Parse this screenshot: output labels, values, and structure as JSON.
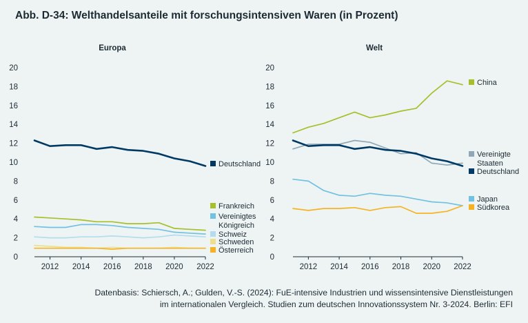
{
  "figure": {
    "title": "Abb. D-34: Welthandelsanteile mit forschungsintensiven Waren (in Prozent)",
    "source_lines": [
      "Datenbasis: Schiersch, A.; Gulden, V.-S. (2024): FuE-intensive Industrien und wissensintensive Dienstleistungen",
      "im internationalen Vergleich. Studien zum deutschen Innovationssystem Nr. 3-2024. Berlin: EFI"
    ]
  },
  "chart_data": [
    {
      "type": "line",
      "title": "Europa",
      "xlabel": "",
      "ylabel": "",
      "xlim": [
        2011,
        2022
      ],
      "ylim": [
        0,
        20
      ],
      "xticks": [
        2012,
        2014,
        2016,
        2018,
        2020,
        2022
      ],
      "yticks": [
        0,
        2,
        4,
        6,
        8,
        10,
        12,
        14,
        16,
        18,
        20
      ],
      "grid": false,
      "legend": "right",
      "x": [
        2011,
        2012,
        2013,
        2014,
        2015,
        2016,
        2017,
        2018,
        2019,
        2020,
        2021,
        2022
      ],
      "series": [
        {
          "name": "Deutschland",
          "color": "#003a64",
          "legend_swatch": true,
          "label_lines": [
            "Deutschland"
          ],
          "values": [
            12.3,
            11.7,
            11.8,
            11.8,
            11.4,
            11.6,
            11.3,
            11.2,
            10.9,
            10.4,
            10.1,
            9.6
          ]
        },
        {
          "name": "Frankreich",
          "color": "#a6bf2a",
          "legend_swatch": true,
          "label_lines": [
            "Frankreich"
          ],
          "values": [
            4.2,
            4.1,
            4.0,
            3.9,
            3.7,
            3.7,
            3.5,
            3.5,
            3.6,
            3.0,
            2.9,
            2.8
          ]
        },
        {
          "name": "Vereinigtes Königreich",
          "color": "#72c1e1",
          "legend_swatch": true,
          "label_lines": [
            "Vereinigtes",
            "Königreich"
          ],
          "values": [
            3.2,
            3.1,
            3.1,
            3.4,
            3.4,
            3.3,
            3.1,
            3.0,
            2.9,
            2.6,
            2.5,
            2.4
          ]
        },
        {
          "name": "Schweiz",
          "color": "#b4dcee",
          "legend_swatch": true,
          "label_lines": [
            "Schweiz"
          ],
          "values": [
            2.1,
            2.0,
            2.0,
            2.1,
            2.1,
            2.2,
            2.1,
            2.0,
            2.1,
            2.3,
            2.2,
            2.1
          ]
        },
        {
          "name": "Schweden",
          "color": "#ecdf90",
          "legend_swatch": true,
          "label_lines": [
            "Schweden"
          ],
          "values": [
            1.2,
            1.1,
            1.0,
            1.0,
            0.9,
            1.0,
            0.9,
            0.9,
            0.9,
            1.0,
            0.9,
            0.9
          ]
        },
        {
          "name": "Österreich",
          "color": "#f5b324",
          "legend_swatch": true,
          "label_lines": [
            "Österreich"
          ],
          "values": [
            0.9,
            0.9,
            0.9,
            0.9,
            0.9,
            0.8,
            0.9,
            0.9,
            0.9,
            0.9,
            0.9,
            0.9
          ]
        }
      ]
    },
    {
      "type": "line",
      "title": "Welt",
      "xlabel": "",
      "ylabel": "",
      "xlim": [
        2011,
        2022
      ],
      "ylim": [
        0,
        20
      ],
      "xticks": [
        2012,
        2014,
        2016,
        2018,
        2020,
        2022
      ],
      "yticks": [
        0,
        2,
        4,
        6,
        8,
        10,
        12,
        14,
        16,
        18,
        20
      ],
      "grid": false,
      "legend": "right",
      "x": [
        2011,
        2012,
        2013,
        2014,
        2015,
        2016,
        2017,
        2018,
        2019,
        2020,
        2021,
        2022
      ],
      "series": [
        {
          "name": "China",
          "color": "#a6bf2a",
          "legend_swatch": true,
          "label_lines": [
            "China"
          ],
          "values": [
            13.1,
            13.7,
            14.1,
            14.7,
            15.3,
            14.7,
            15.0,
            15.4,
            15.7,
            17.3,
            18.6,
            18.2
          ]
        },
        {
          "name": "Vereinigte Staaten",
          "color": "#8ea8b8",
          "legend_swatch": true,
          "label_lines": [
            "Vereinigte",
            "Staaten"
          ],
          "values": [
            11.4,
            11.9,
            11.9,
            11.9,
            12.3,
            12.1,
            11.5,
            10.9,
            11.0,
            9.9,
            9.7,
            9.9
          ]
        },
        {
          "name": "Deutschland",
          "color": "#003a64",
          "legend_swatch": true,
          "label_lines": [
            "Deutschland"
          ],
          "values": [
            12.3,
            11.7,
            11.8,
            11.8,
            11.4,
            11.6,
            11.3,
            11.2,
            10.9,
            10.4,
            10.1,
            9.6
          ]
        },
        {
          "name": "Japan",
          "color": "#72c1e1",
          "legend_swatch": true,
          "label_lines": [
            "Japan"
          ],
          "values": [
            8.2,
            8.0,
            7.0,
            6.5,
            6.4,
            6.7,
            6.5,
            6.4,
            6.1,
            5.8,
            5.7,
            5.4
          ]
        },
        {
          "name": "Südkorea",
          "color": "#f5b324",
          "legend_swatch": true,
          "label_lines": [
            "Südkorea"
          ],
          "values": [
            5.1,
            4.9,
            5.1,
            5.1,
            5.2,
            4.9,
            5.2,
            5.3,
            4.6,
            4.6,
            4.8,
            5.4
          ]
        }
      ]
    }
  ]
}
